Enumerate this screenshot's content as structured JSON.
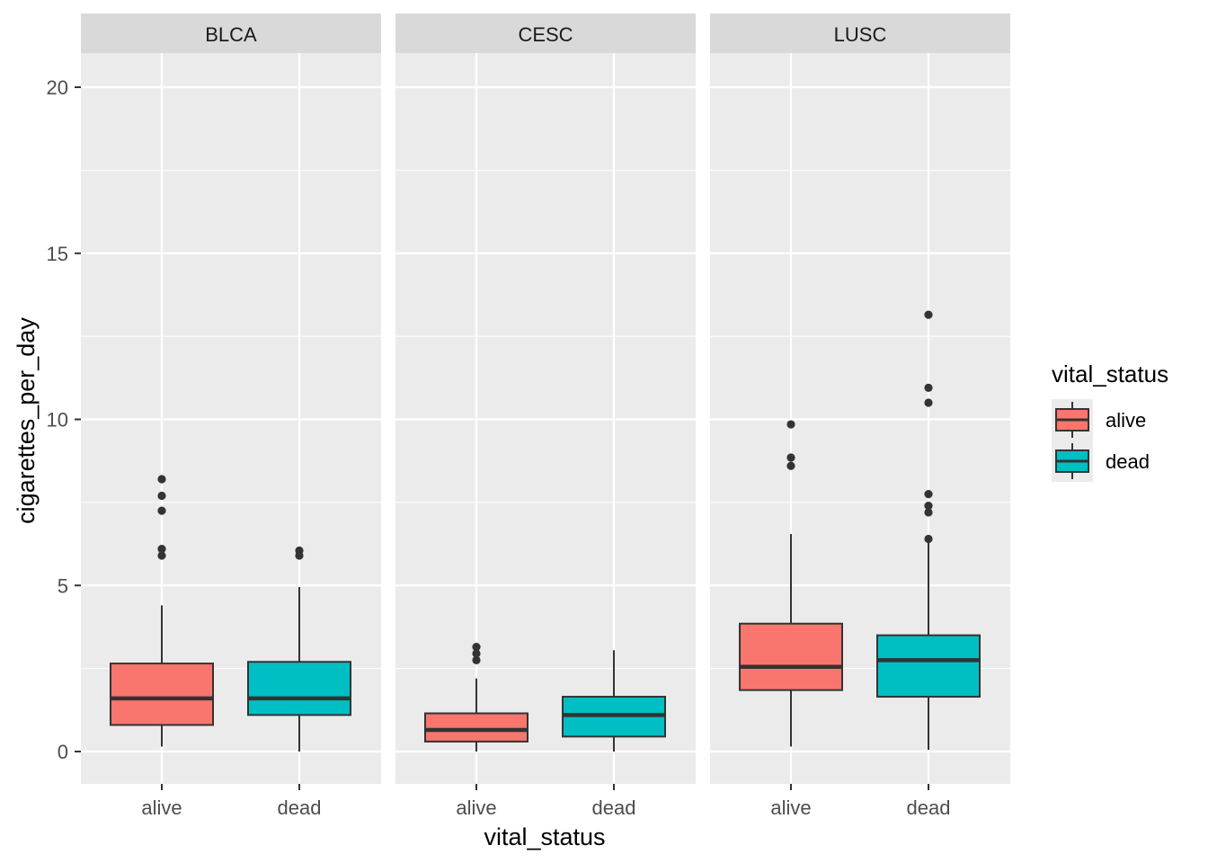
{
  "chart_data": {
    "type": "box",
    "facet_variable": "",
    "xlabel": "vital_status",
    "ylabel": "cigarettes_per_day",
    "ylim": [
      -1,
      21
    ],
    "yticks": [
      0,
      5,
      10,
      15,
      20
    ],
    "grid": true,
    "legend": {
      "title": "vital_status",
      "placement": "right",
      "entries": [
        "alive",
        "dead"
      ]
    },
    "colors": {
      "alive": "#F8766D",
      "dead": "#00BFC4"
    },
    "facets": [
      {
        "label": "BLCA",
        "categories": [
          "alive",
          "dead"
        ],
        "boxes": [
          {
            "group": "alive",
            "min": 0.15,
            "q1": 0.8,
            "median": 1.6,
            "q3": 2.65,
            "max": 4.4,
            "outliers": [
              5.9,
              6.1,
              7.25,
              7.7,
              8.2
            ]
          },
          {
            "group": "dead",
            "min": 0.0,
            "q1": 1.1,
            "median": 1.6,
            "q3": 2.7,
            "max": 4.95,
            "outliers": [
              5.9,
              6.05
            ]
          }
        ]
      },
      {
        "label": "CESC",
        "categories": [
          "alive",
          "dead"
        ],
        "boxes": [
          {
            "group": "alive",
            "min": 0.0,
            "q1": 0.3,
            "median": 0.65,
            "q3": 1.15,
            "max": 2.2,
            "outliers": [
              2.75,
              2.95,
              3.15
            ]
          },
          {
            "group": "dead",
            "min": 0.0,
            "q1": 0.45,
            "median": 1.1,
            "q3": 1.65,
            "max": 3.05,
            "outliers": []
          }
        ]
      },
      {
        "label": "LUSC",
        "categories": [
          "alive",
          "dead"
        ],
        "boxes": [
          {
            "group": "alive",
            "min": 0.15,
            "q1": 1.85,
            "median": 2.55,
            "q3": 3.85,
            "max": 6.55,
            "outliers": [
              8.6,
              8.85,
              9.85
            ]
          },
          {
            "group": "dead",
            "min": 0.05,
            "q1": 1.65,
            "median": 2.75,
            "q3": 3.5,
            "max": 6.3,
            "outliers": [
              6.4,
              7.2,
              7.4,
              7.75,
              10.5,
              10.95,
              13.15
            ]
          }
        ]
      }
    ]
  }
}
